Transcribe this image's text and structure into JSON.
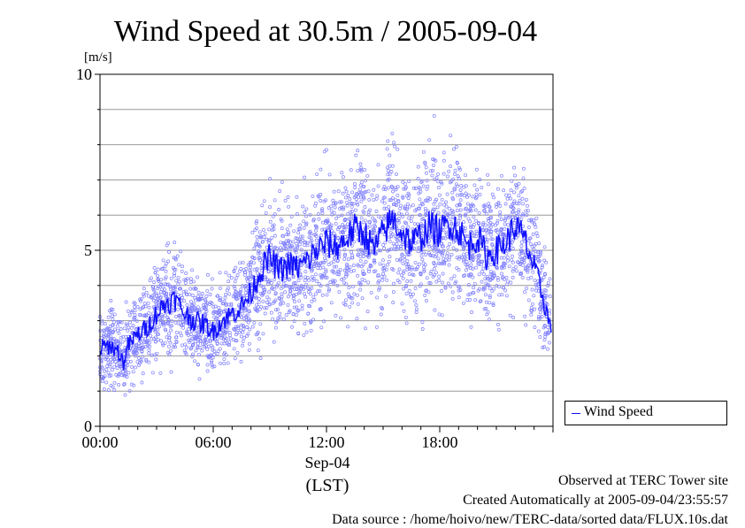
{
  "chart_data": {
    "type": "scatter",
    "title": "Wind Speed at 30.5m / 2005-09-04",
    "ylabel": "[m/s]",
    "ylim": [
      0,
      10
    ],
    "yticks": [
      "0",
      "5",
      "10"
    ],
    "xlim": [
      "00:00",
      "24:00"
    ],
    "xticks": [
      "00:00",
      "06:00",
      "12:00",
      "18:00"
    ],
    "xlabel_date": "Sep-04",
    "xlabel_unit": "(LST)",
    "grid": true,
    "legend": {
      "position": "bottom-right outside",
      "label": "Wind Speed"
    },
    "colors": {
      "points": "#7f7fff",
      "line": "#1010ff"
    },
    "series": [
      {
        "name": "Wind Speed",
        "style": "line (mean) with scatter of 10s samples",
        "x_hours": [
          0,
          0.5,
          1,
          1.25,
          1.5,
          2,
          2.5,
          3,
          3.5,
          4,
          4.5,
          5,
          5.5,
          6,
          6.5,
          7,
          7.5,
          8,
          8.5,
          9,
          9.5,
          10,
          10.5,
          11,
          11.5,
          12,
          12.5,
          13,
          13.5,
          14,
          14.5,
          15,
          15.5,
          16,
          16.5,
          17,
          17.5,
          18,
          18.5,
          19,
          19.5,
          20,
          20.5,
          21,
          21.5,
          22,
          22.5,
          23,
          23.5,
          24
        ],
        "values": [
          2.2,
          2.3,
          2.1,
          1.8,
          2.3,
          2.6,
          2.8,
          3.2,
          3.5,
          3.6,
          3.2,
          3.0,
          2.9,
          2.7,
          3.0,
          3.2,
          3.4,
          3.8,
          4.4,
          4.8,
          4.4,
          4.6,
          4.5,
          4.7,
          5.0,
          5.2,
          5.1,
          5.3,
          5.6,
          5.5,
          5.0,
          5.5,
          5.9,
          5.5,
          5.2,
          5.4,
          5.7,
          5.5,
          5.8,
          5.6,
          5.1,
          5.4,
          4.8,
          5.0,
          5.2,
          5.7,
          5.3,
          4.5,
          3.6,
          2.5
        ]
      }
    ]
  },
  "footer": {
    "line1": "Observed at TERC Tower site",
    "line2": "Created Automatically at 2005-09-04/23:55:57",
    "line3": "Data source : /home/hoivo/new/TERC-data/sorted  data/FLUX.10s.dat"
  }
}
